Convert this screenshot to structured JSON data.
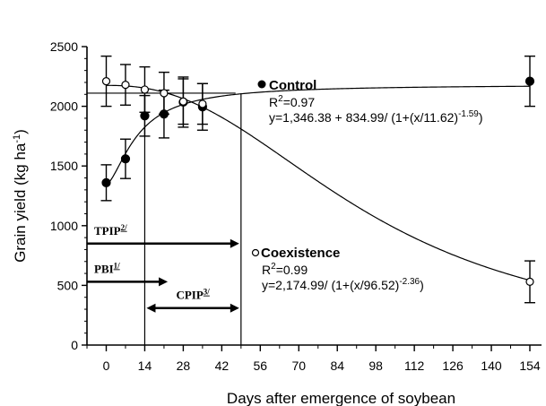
{
  "chart_data": {
    "type": "scatter",
    "xlabel": "Days after emergence of soybean",
    "ylabel": "Grain yield (kg ha",
    "ylabel_sup": "-1",
    "ylabel_end": ")",
    "xlim": [
      -10,
      158
    ],
    "ylim": [
      0,
      2500
    ],
    "x_ticks": [
      0,
      14,
      28,
      42,
      56,
      70,
      84,
      98,
      112,
      126,
      140,
      154
    ],
    "y_ticks": [
      0,
      500,
      1000,
      1500,
      2000,
      2500
    ],
    "grid": false,
    "series": [
      {
        "name": "Control",
        "marker": "filled-circle",
        "x": [
          0,
          7,
          14,
          21,
          28,
          35,
          154
        ],
        "y": [
          1360,
          1560,
          1920,
          1935,
          2035,
          1995,
          2210
        ],
        "err": [
          150,
          165,
          170,
          200,
          210,
          195,
          210
        ],
        "stats": {
          "r2_prefix": "R",
          "r2_sup": "2",
          "r2_value": "=0.97",
          "eq_main": "y=1,346.38 + 834.99/ (1+(x/11.62)",
          "eq_sup": "-1.59",
          "eq_end": ")"
        }
      },
      {
        "name": "Coexistence",
        "marker": "open-circle",
        "x": [
          0,
          7,
          14,
          21,
          28,
          35,
          154
        ],
        "y": [
          2210,
          2180,
          2140,
          2110,
          2040,
          2020,
          530
        ],
        "err": [
          210,
          170,
          190,
          175,
          190,
          170,
          175
        ],
        "stats": {
          "r2_prefix": "R",
          "r2_sup": "2",
          "r2_value": "=0.99",
          "eq_main": "y=2,174.99/ (1+(x/96.52)",
          "eq_sup": "-2.36",
          "eq_end": ")"
        }
      }
    ],
    "reference_lines": {
      "horizontal_y": 2110,
      "vertical_x": [
        14,
        49
      ]
    },
    "periods": [
      {
        "label": "TPIP",
        "sup": "2/",
        "start": -10,
        "end": 49,
        "y": 850,
        "direction": "right"
      },
      {
        "label": "PBI",
        "sup": "1/",
        "start": -10,
        "end": 23,
        "y": 530,
        "direction": "right"
      },
      {
        "label": "CPIP",
        "sup": "3/",
        "start": 14,
        "end": 49,
        "y": 310,
        "direction": "both"
      }
    ]
  }
}
